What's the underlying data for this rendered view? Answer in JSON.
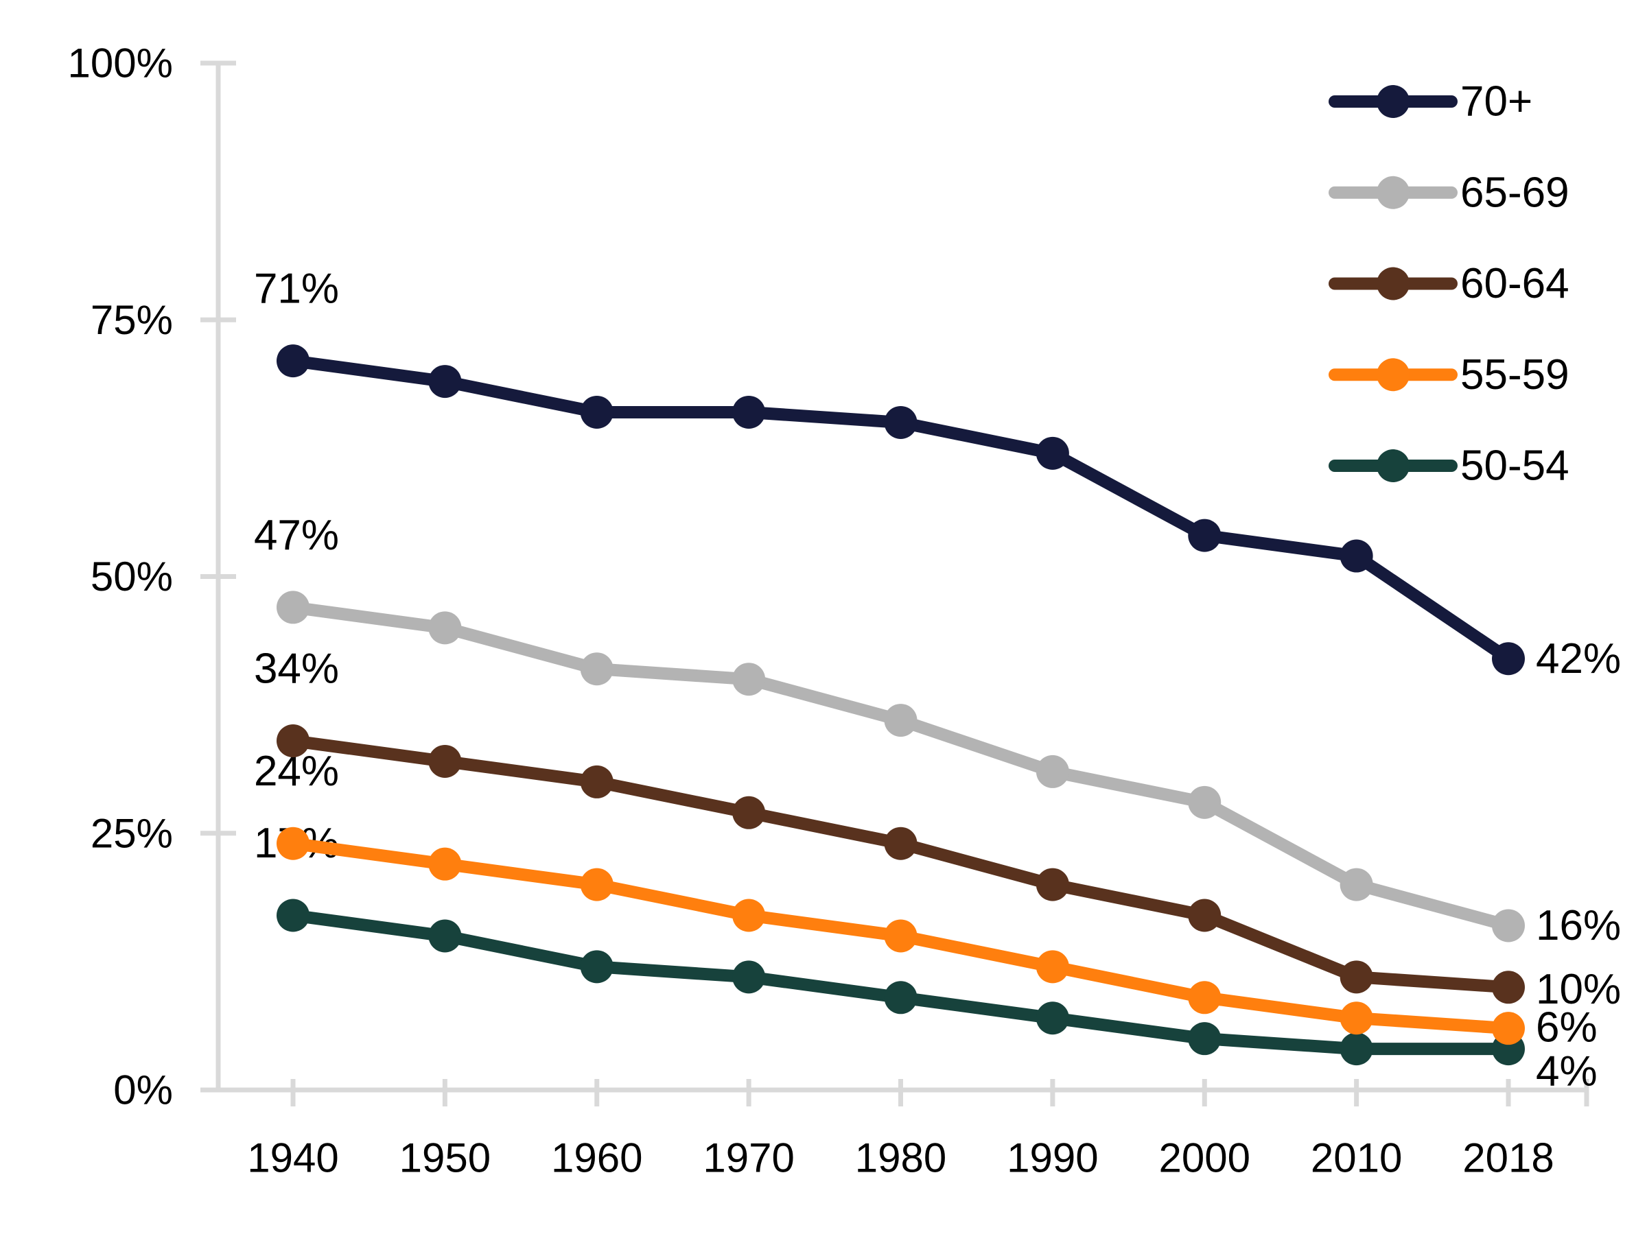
{
  "chart_data": {
    "type": "line",
    "title": "",
    "xlabel": "",
    "ylabel": "",
    "categories": [
      "1940",
      "1950",
      "1960",
      "1970",
      "1980",
      "1990",
      "2000",
      "2010",
      "2018"
    ],
    "series": [
      {
        "name": "50-54",
        "color": "#17423c",
        "values": [
          17,
          15,
          12,
          11,
          9,
          7,
          5,
          4,
          4
        ],
        "start_label": "17%",
        "end_label": "4%"
      },
      {
        "name": "55-59",
        "color": "#ff7f0e",
        "values": [
          24,
          22,
          20,
          17,
          15,
          12,
          9,
          7,
          6
        ],
        "start_label": "24%",
        "end_label": "6%"
      },
      {
        "name": "60-64",
        "color": "#59321e",
        "values": [
          34,
          32,
          30,
          27,
          24,
          20,
          17,
          11,
          10
        ],
        "start_label": "34%",
        "end_label": "10%"
      },
      {
        "name": "65-69",
        "color": "#b3b3b3",
        "values": [
          47,
          45,
          41,
          40,
          36,
          31,
          28,
          20,
          16
        ],
        "start_label": "47%",
        "end_label": "16%"
      },
      {
        "name": "70+",
        "color": "#151a3c",
        "values": [
          71,
          69,
          66,
          66,
          65,
          62,
          54,
          52,
          42
        ],
        "start_label": "71%",
        "end_label": "42%"
      }
    ],
    "ylim": [
      0,
      100
    ],
    "y_tick_labels": [
      "0%",
      "25%",
      "50%",
      "75%",
      "100%"
    ],
    "y_tick_values": [
      0,
      25,
      50,
      75,
      100
    ],
    "grid": false,
    "markers": true,
    "legend_position": "top-right",
    "legend_entries": [
      "50-54",
      "55-59",
      "60-64",
      "65-69",
      "70+"
    ],
    "axis_color": "#d9d9d9",
    "text_color": "#000000"
  }
}
